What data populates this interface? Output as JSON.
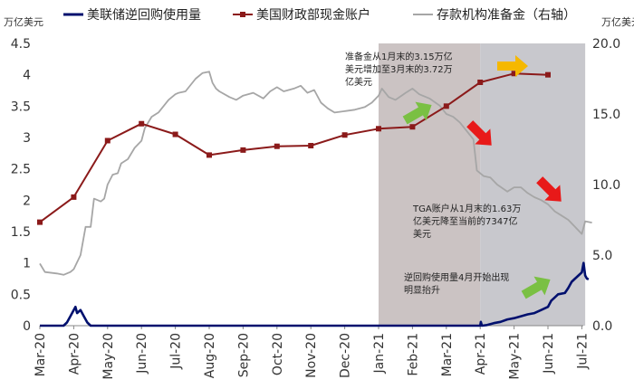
{
  "chart_data": {
    "type": "line",
    "left_axis_unit": "万亿美元",
    "right_axis_unit": "万亿美元",
    "y_left": {
      "min": 0,
      "max": 4.5,
      "ticks": [
        "0",
        "0.5",
        "1",
        "1.5",
        "2",
        "2.5",
        "3",
        "3.5",
        "4",
        "4.5"
      ]
    },
    "y_right": {
      "min": 0,
      "max": 20,
      "ticks": [
        "0.0",
        "5.0",
        "10.0",
        "15.0",
        "20.0"
      ]
    },
    "x_range": [
      0,
      16.4
    ],
    "x_ticks": [
      "Mar-20",
      "Apr-20",
      "May-20",
      "Jun-20",
      "Jul-20",
      "Aug-20",
      "Sep-20",
      "Oct-20",
      "Nov-20",
      "Dec-20",
      "Jan-21",
      "Feb-21",
      "Mar-21",
      "Apr-21",
      "May-21",
      "Jun-21",
      "Jul-21"
    ],
    "shading": [
      {
        "from": 10,
        "to": 13,
        "color": "#cbc3c3"
      },
      {
        "from": 13,
        "to": 16.1,
        "color": "#c8c8cd"
      }
    ],
    "legend": [
      {
        "label": "美联储逆回购使用量",
        "color": "#00106e",
        "marker": "none"
      },
      {
        "label": "美国财政部现金账户",
        "color": "#8b1a1a",
        "marker": "square"
      },
      {
        "label": "存款机构准备金（右轴）",
        "color": "#a6a6a6",
        "marker": "none"
      }
    ],
    "series": [
      {
        "name": "美联储逆回购使用量",
        "axis": "left",
        "color": "#00106e",
        "points": [
          [
            0,
            0
          ],
          [
            0.7,
            0
          ],
          [
            0.8,
            0.05
          ],
          [
            0.9,
            0.15
          ],
          [
            1.0,
            0.25
          ],
          [
            1.05,
            0.3
          ],
          [
            1.1,
            0.2
          ],
          [
            1.2,
            0.25
          ],
          [
            1.3,
            0.15
          ],
          [
            1.4,
            0.05
          ],
          [
            1.5,
            0
          ],
          [
            13.0,
            0
          ],
          [
            13.02,
            0.06
          ],
          [
            13.05,
            0
          ],
          [
            13.2,
            0.01
          ],
          [
            13.4,
            0.04
          ],
          [
            13.6,
            0.06
          ],
          [
            13.8,
            0.1
          ],
          [
            14.0,
            0.12
          ],
          [
            14.2,
            0.15
          ],
          [
            14.4,
            0.18
          ],
          [
            14.6,
            0.2
          ],
          [
            14.8,
            0.25
          ],
          [
            15.0,
            0.3
          ],
          [
            15.1,
            0.4
          ],
          [
            15.2,
            0.45
          ],
          [
            15.3,
            0.5
          ],
          [
            15.5,
            0.52
          ],
          [
            15.6,
            0.6
          ],
          [
            15.7,
            0.7
          ],
          [
            15.8,
            0.75
          ],
          [
            15.9,
            0.8
          ],
          [
            16.0,
            0.85
          ],
          [
            16.05,
            1.0
          ],
          [
            16.1,
            0.8
          ],
          [
            16.15,
            0.75
          ],
          [
            16.2,
            0.74
          ]
        ]
      },
      {
        "name": "美国财政部现金账户",
        "axis": "left",
        "color": "#8b1a1a",
        "points": [
          [
            0,
            1.65
          ],
          [
            1,
            2.05
          ],
          [
            2,
            2.95
          ],
          [
            3,
            3.22
          ],
          [
            4,
            3.05
          ],
          [
            5,
            2.72
          ],
          [
            6,
            2.8
          ],
          [
            7,
            2.86
          ],
          [
            8,
            2.87
          ],
          [
            9,
            3.04
          ],
          [
            10,
            3.14
          ],
          [
            11,
            3.17
          ],
          [
            12,
            3.5
          ],
          [
            13,
            3.88
          ],
          [
            14,
            4.02
          ],
          [
            15,
            4.0
          ]
        ]
      },
      {
        "name": "存款机构准备金（右轴）",
        "axis": "right",
        "color": "#a6a6a6",
        "points": [
          [
            0,
            4.4
          ],
          [
            0.15,
            3.8
          ],
          [
            0.5,
            3.7
          ],
          [
            0.7,
            3.6
          ],
          [
            0.9,
            3.8
          ],
          [
            1.0,
            4.0
          ],
          [
            1.2,
            5.0
          ],
          [
            1.35,
            7.0
          ],
          [
            1.5,
            7.0
          ],
          [
            1.6,
            9.0
          ],
          [
            1.8,
            8.8
          ],
          [
            1.9,
            9.0
          ],
          [
            2.0,
            10.0
          ],
          [
            2.15,
            10.7
          ],
          [
            2.3,
            10.8
          ],
          [
            2.4,
            11.5
          ],
          [
            2.6,
            11.8
          ],
          [
            2.8,
            12.6
          ],
          [
            3.0,
            13.1
          ],
          [
            3.1,
            14.0
          ],
          [
            3.3,
            14.8
          ],
          [
            3.5,
            15.1
          ],
          [
            3.7,
            15.7
          ],
          [
            3.8,
            16.0
          ],
          [
            4.0,
            16.4
          ],
          [
            4.1,
            16.5
          ],
          [
            4.3,
            16.6
          ],
          [
            4.6,
            17.5
          ],
          [
            4.8,
            17.9
          ],
          [
            5.0,
            18.0
          ],
          [
            5.1,
            17.2
          ],
          [
            5.2,
            16.8
          ],
          [
            5.3,
            16.6
          ],
          [
            5.6,
            16.2
          ],
          [
            5.8,
            16.0
          ],
          [
            6.0,
            16.3
          ],
          [
            6.3,
            16.5
          ],
          [
            6.6,
            16.1
          ],
          [
            6.8,
            16.6
          ],
          [
            7.0,
            16.9
          ],
          [
            7.2,
            16.6
          ],
          [
            7.5,
            16.8
          ],
          [
            7.7,
            17.0
          ],
          [
            7.9,
            16.5
          ],
          [
            8.1,
            16.7
          ],
          [
            8.3,
            15.8
          ],
          [
            8.5,
            15.4
          ],
          [
            8.7,
            15.1
          ],
          [
            9.0,
            15.2
          ],
          [
            9.3,
            15.3
          ],
          [
            9.6,
            15.5
          ],
          [
            9.8,
            15.8
          ],
          [
            10.0,
            16.3
          ],
          [
            10.1,
            16.8
          ],
          [
            10.3,
            16.2
          ],
          [
            10.5,
            16.0
          ],
          [
            10.8,
            16.5
          ],
          [
            11.0,
            16.8
          ],
          [
            11.2,
            16.4
          ],
          [
            11.5,
            16.1
          ],
          [
            11.8,
            15.6
          ],
          [
            12.0,
            15.0
          ],
          [
            12.2,
            14.8
          ],
          [
            12.4,
            14.4
          ],
          [
            12.6,
            13.8
          ],
          [
            12.8,
            13.2
          ],
          [
            12.9,
            11.0
          ],
          [
            13.1,
            10.6
          ],
          [
            13.3,
            10.5
          ],
          [
            13.5,
            10.0
          ],
          [
            13.8,
            9.5
          ],
          [
            14.0,
            9.8
          ],
          [
            14.2,
            9.8
          ],
          [
            14.4,
            9.4
          ],
          [
            14.6,
            9.1
          ],
          [
            14.8,
            8.9
          ],
          [
            15.0,
            8.6
          ],
          [
            15.2,
            8.1
          ],
          [
            15.4,
            7.8
          ],
          [
            15.6,
            7.5
          ],
          [
            15.8,
            7.0
          ],
          [
            16.0,
            6.5
          ],
          [
            16.1,
            7.4
          ],
          [
            16.3,
            7.3
          ]
        ]
      }
    ],
    "annotations": [
      {
        "lines": [
          "准备金从1月末的3.15万亿",
          "美元增加至3月末的3.72万",
          "亿美元"
        ]
      },
      {
        "lines": [
          "TGA账户从1月末的1.63万",
          "亿美元降至当前的7347亿",
          "美元"
        ]
      },
      {
        "lines": [
          "逆回购使用量4月开始出现",
          "明显抬升"
        ]
      }
    ],
    "arrows": [
      {
        "name": "green-arrow-reserves",
        "color": "#7ac043",
        "direction": "up-right"
      },
      {
        "name": "orange-arrow-tga",
        "color": "#f5b800",
        "direction": "right"
      },
      {
        "name": "red-arrow-tga",
        "color": "#e81919",
        "direction": "down-right"
      },
      {
        "name": "red-arrow-reserves",
        "color": "#e81919",
        "direction": "down-right"
      },
      {
        "name": "green-arrow-repo",
        "color": "#7ac043",
        "direction": "up-right"
      }
    ]
  }
}
